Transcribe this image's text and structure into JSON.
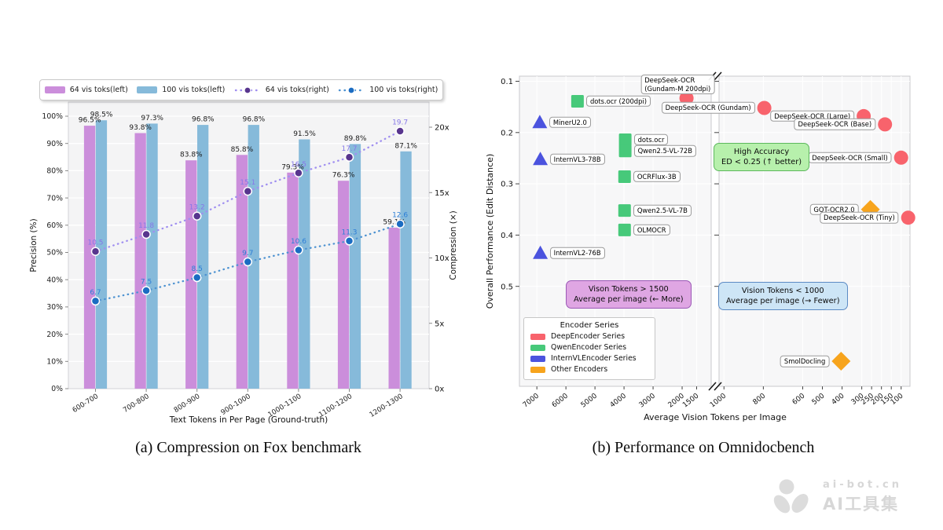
{
  "captions": {
    "a": "(a) Compression on Fox benchmark",
    "b": "(b) Performance on Omnidocbench"
  },
  "watermark": {
    "line1": "ai-bot.cn",
    "line2": "AI工具集",
    "color": "#d7d7d7"
  },
  "chart_data": [
    {
      "type": "bar+line",
      "title": "Compression on Fox benchmark",
      "xlabel": "Text Tokens in Per Page (Ground-truth)",
      "ylabel_left": "Precision (%)",
      "ylabel_right": "Compression (×)",
      "categories": [
        "600-700",
        "700-800",
        "800-900",
        "900-1000",
        "1000-1100",
        "1100-1200",
        "1200-1300"
      ],
      "left_axis": {
        "range": [
          0,
          105.2
        ],
        "ticks": [
          0,
          10,
          20,
          30,
          40,
          50,
          60,
          70,
          80,
          90,
          100
        ],
        "suffix": "%"
      },
      "right_axis": {
        "range": [
          0,
          21.9
        ],
        "ticks": [
          0,
          5,
          10,
          15,
          20
        ],
        "suffix": "x"
      },
      "series": [
        {
          "name": "64 vis toks(left)",
          "kind": "bar",
          "axis": "left",
          "color": "#cb8edb",
          "values": [
            96.5,
            93.8,
            83.8,
            85.8,
            79.3,
            76.3,
            59.1
          ],
          "value_suffix": "%"
        },
        {
          "name": "100 vis toks(left)",
          "kind": "bar",
          "axis": "left",
          "color": "#86bada",
          "values": [
            98.5,
            97.3,
            96.8,
            96.8,
            91.5,
            89.8,
            87.1
          ],
          "value_suffix": "%"
        },
        {
          "name": "64 vis toks(right)",
          "kind": "line",
          "axis": "right",
          "color": "#a08ff0",
          "dot_color": "#58358e",
          "label_color": "#8677e8",
          "values": [
            10.5,
            11.8,
            13.2,
            15.1,
            16.5,
            17.7,
            19.7
          ]
        },
        {
          "name": "100 vis toks(right)",
          "kind": "line",
          "axis": "right",
          "color": "#4d92d1",
          "dot_color": "#1b6cc2",
          "label_color": "#2c7ed6",
          "values": [
            6.7,
            7.5,
            8.5,
            9.7,
            10.6,
            11.3,
            12.6
          ]
        }
      ]
    },
    {
      "type": "scatter",
      "title": "Performance on Omnidocbench",
      "xlabel": "Average Vision Tokens per Image",
      "ylabel": "Overall Performance (Edit Distance)",
      "y_axis": {
        "range": [
          0.09,
          0.695
        ],
        "ticks": [
          0.1,
          0.2,
          0.3,
          0.4,
          0.5
        ],
        "inverted": true
      },
      "x_panels": [
        {
          "range": [
            7600,
            1000
          ],
          "ticks": [
            7000,
            6000,
            5000,
            4000,
            3000,
            2000,
            1500
          ]
        },
        {
          "range": [
            1025,
            55
          ],
          "ticks": [
            1000,
            800,
            600,
            500,
            400,
            300,
            250,
            200,
            150,
            100
          ]
        }
      ],
      "legend": {
        "title": "Encoder Series",
        "entries": [
          {
            "label": "DeepEncoder Series",
            "color": "#f8636c",
            "marker": "circle"
          },
          {
            "label": "QwenEncoder Series",
            "color": "#47c97a",
            "marker": "square"
          },
          {
            "label": "InternVLEncoder Series",
            "color": "#4b53de",
            "marker": "triangle"
          },
          {
            "label": "Other Encoders",
            "color": "#f7a41d",
            "marker": "diamond"
          }
        ]
      },
      "points": [
        {
          "label": "MinerU2.0",
          "series": "InternVLEncoder Series",
          "marker": "triangle",
          "panel": 0,
          "x": 6900,
          "ed": 0.18,
          "label_side": "right"
        },
        {
          "label": "InternVL3-78B",
          "series": "InternVLEncoder Series",
          "marker": "triangle",
          "panel": 0,
          "x": 6880,
          "ed": 0.252,
          "label_side": "right"
        },
        {
          "label": "InternVL2-76B",
          "series": "InternVLEncoder Series",
          "marker": "triangle",
          "panel": 0,
          "x": 6880,
          "ed": 0.435,
          "label_side": "right"
        },
        {
          "label": "dots.ocr (200dpi)",
          "series": "QwenEncoder Series",
          "marker": "square",
          "panel": 0,
          "x": 5600,
          "ed": 0.139,
          "label_side": "right"
        },
        {
          "label": "dots.ocr",
          "series": "QwenEncoder Series",
          "marker": "square",
          "panel": 0,
          "x": 3960,
          "ed": 0.214,
          "label_side": "right"
        },
        {
          "label": "Qwen2.5-VL-72B",
          "series": "QwenEncoder Series",
          "marker": "square",
          "panel": 0,
          "x": 3960,
          "ed": 0.236,
          "label_side": "right"
        },
        {
          "label": "OCRFlux-3B",
          "series": "QwenEncoder Series",
          "marker": "square",
          "panel": 0,
          "x": 3980,
          "ed": 0.286,
          "label_side": "right"
        },
        {
          "label": "Qwen2.5-VL-7B",
          "series": "QwenEncoder Series",
          "marker": "square",
          "panel": 0,
          "x": 3980,
          "ed": 0.352,
          "label_side": "right"
        },
        {
          "label": "OLMOCR",
          "series": "QwenEncoder Series",
          "marker": "square",
          "panel": 0,
          "x": 3980,
          "ed": 0.39,
          "label_side": "right"
        },
        {
          "label": "DeepSeek-OCR (Gundam-M 200dpi)",
          "label_lines": [
            "DeepSeek-OCR",
            "(Gundam-M 200dpi)"
          ],
          "series": "DeepEncoder Series",
          "marker": "circle",
          "panel": 0,
          "x": 1850,
          "ed": 0.133,
          "label_side": "above"
        },
        {
          "label": "DeepSeek-OCR (Gundam)",
          "series": "DeepEncoder Series",
          "marker": "circle",
          "panel": 1,
          "x": 795,
          "ed": 0.152,
          "label_side": "left"
        },
        {
          "label": "DeepSeek-OCR (Large)",
          "series": "DeepEncoder Series",
          "marker": "circle",
          "panel": 1,
          "x": 290,
          "ed": 0.168,
          "label_side": "left"
        },
        {
          "label": "DeepSeek-OCR (Base)",
          "series": "DeepEncoder Series",
          "marker": "circle",
          "panel": 1,
          "x": 182,
          "ed": 0.184,
          "label_side": "left"
        },
        {
          "label": "DeepSeek-OCR (Small)",
          "series": "DeepEncoder Series",
          "marker": "circle",
          "panel": 1,
          "x": 100,
          "ed": 0.249,
          "label_side": "left"
        },
        {
          "label": "GOT-OCR2.0",
          "series": "Other Encoders",
          "marker": "diamond",
          "panel": 1,
          "x": 256,
          "ed": 0.35,
          "label_side": "left"
        },
        {
          "label": "DeepSeek-OCR (Tiny)",
          "series": "DeepEncoder Series",
          "marker": "circle",
          "panel": 1,
          "x": 64,
          "ed": 0.366,
          "label_side": "left"
        },
        {
          "label": "SmolDocling",
          "series": "Other Encoders",
          "marker": "diamond",
          "panel": 1,
          "x": 405,
          "ed": 0.646,
          "label_side": "left"
        }
      ],
      "annotations": [
        {
          "line1": "High Accuracy",
          "line2": "ED < 0.25 (↑ better)",
          "bg": "#b7f0ac",
          "border": "#5cb85c"
        },
        {
          "line1": "Vison Tokens > 1500",
          "line2": "Average per image (← More)",
          "bg": "#dfa6e3",
          "border": "#9b59b6"
        },
        {
          "line1": "Vision Tokens < 1000",
          "line2": "Average per image (→ Fewer)",
          "bg": "#cde5f6",
          "border": "#5b8ac4"
        }
      ]
    }
  ]
}
